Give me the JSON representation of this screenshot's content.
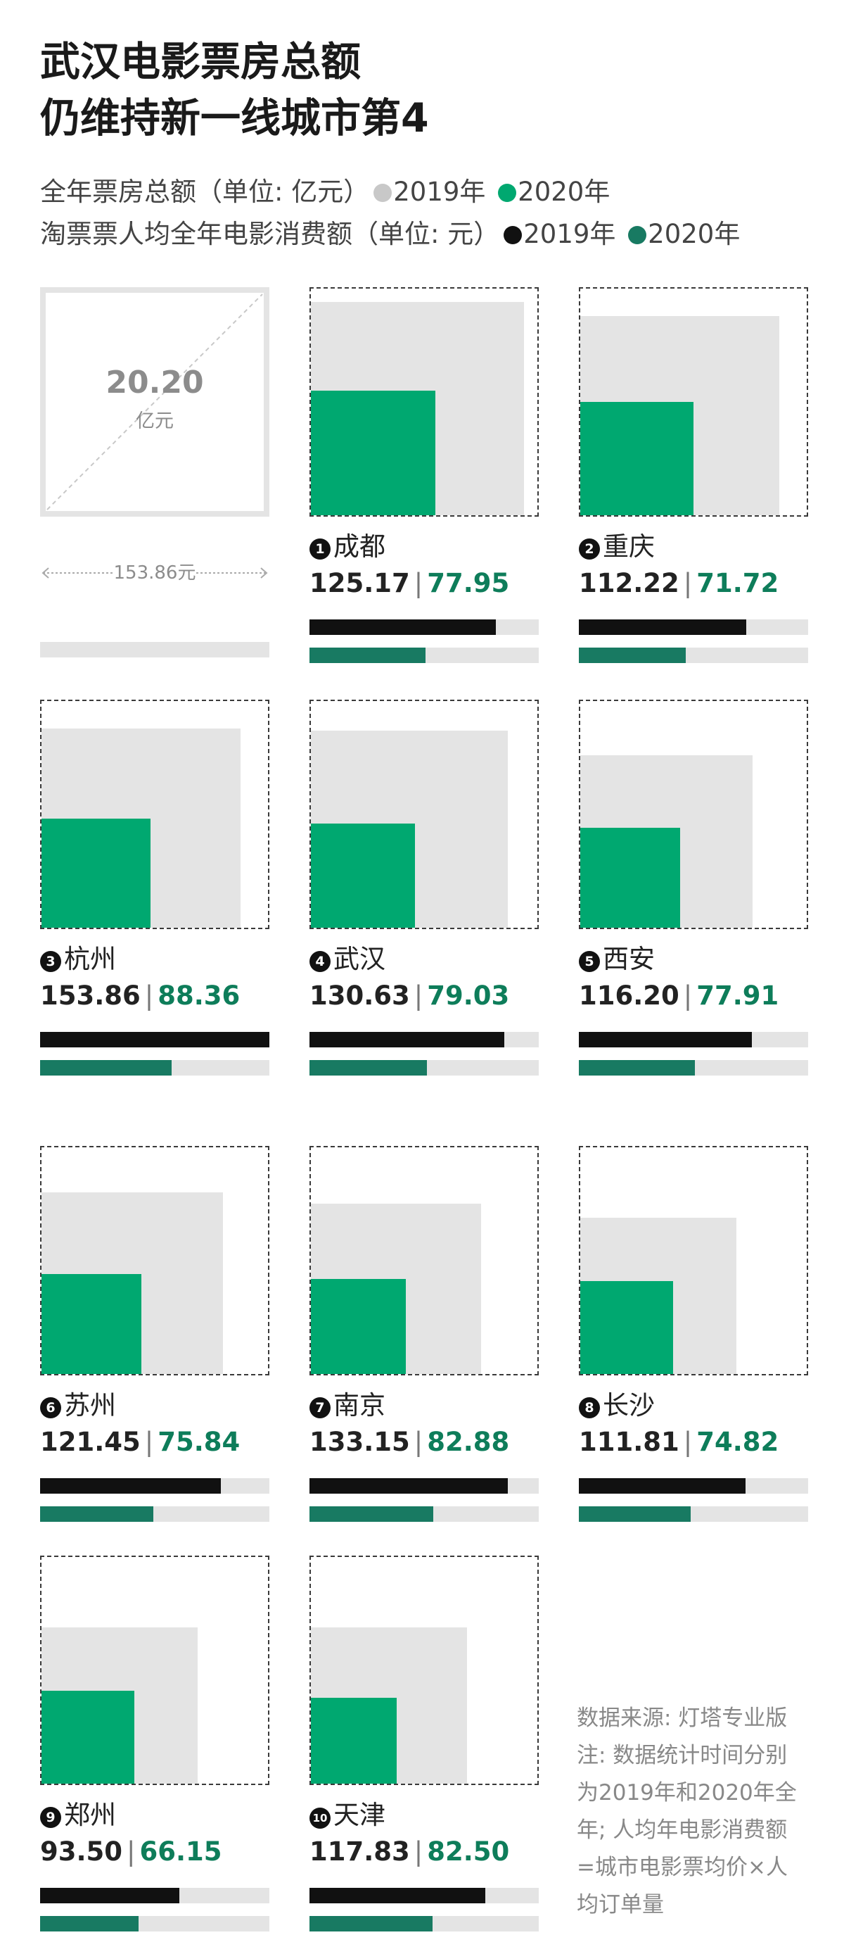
{
  "title": [
    "武汉电影票房总额",
    "仍维持新一线城市第4"
  ],
  "legend": {
    "line1": {
      "text": "全年票房总额（单位: 亿元）",
      "y2019": "2019年",
      "y2020": "2020年",
      "c2019": "#c8c8c8",
      "c2020": "#00a870"
    },
    "line2": {
      "text": "淘票票人均全年电影消费额（单位: 元）",
      "y2019": "2019年",
      "y2020": "2020年",
      "c2019": "#111111",
      "c2020": "#187a62"
    }
  },
  "reference": {
    "value": "20.20",
    "unit": "亿元",
    "label": "153.86元"
  },
  "chart_data": {
    "type": "bar",
    "title": "武汉电影票房总额 仍维持新一线城市第4",
    "series": [
      {
        "name": "全年票房总额 2019年（亿元）",
        "encoding": "square area"
      },
      {
        "name": "全年票房总额 2020年（亿元）",
        "encoding": "square area"
      },
      {
        "name": "淘票票人均全年电影消费额 2019年（元）",
        "values": [
          125.17,
          112.22,
          153.86,
          130.63,
          116.2,
          121.45,
          133.15,
          111.81,
          93.5,
          117.83
        ]
      },
      {
        "name": "淘票票人均全年电影消费额 2020年（元）",
        "values": [
          77.95,
          71.72,
          88.36,
          79.03,
          77.91,
          75.84,
          82.88,
          74.82,
          66.15,
          82.5
        ]
      }
    ],
    "cities": [
      {
        "rank": "1",
        "city": "成都",
        "p2019": "125.17",
        "p2020": "77.95",
        "box2019_frac": 0.94,
        "box2020_frac": 0.55
      },
      {
        "rank": "2",
        "city": "重庆",
        "p2019": "112.22",
        "p2020": "71.72",
        "box2019_frac": 0.88,
        "box2020_frac": 0.5
      },
      {
        "rank": "3",
        "city": "杭州",
        "p2019": "153.86",
        "p2020": "88.36",
        "box2019_frac": 0.88,
        "box2020_frac": 0.48
      },
      {
        "rank": "4",
        "city": "武汉",
        "p2019": "130.63",
        "p2020": "79.03",
        "box2019_frac": 0.87,
        "box2020_frac": 0.46
      },
      {
        "rank": "5",
        "city": "西安",
        "p2019": "116.20",
        "p2020": "77.91",
        "box2019_frac": 0.76,
        "box2020_frac": 0.44
      },
      {
        "rank": "6",
        "city": "苏州",
        "p2019": "121.45",
        "p2020": "75.84",
        "box2019_frac": 0.8,
        "box2020_frac": 0.44
      },
      {
        "rank": "7",
        "city": "南京",
        "p2019": "133.15",
        "p2020": "82.88",
        "box2019_frac": 0.75,
        "box2020_frac": 0.42
      },
      {
        "rank": "8",
        "city": "长沙",
        "p2019": "111.81",
        "p2020": "74.82",
        "box2019_frac": 0.69,
        "box2020_frac": 0.41
      },
      {
        "rank": "9",
        "city": "郑州",
        "p2019": "93.50",
        "p2020": "66.15",
        "box2019_frac": 0.69,
        "box2020_frac": 0.41
      },
      {
        "rank": "10",
        "city": "天津",
        "p2019": "117.83",
        "p2020": "82.50",
        "box2019_frac": 0.69,
        "box2020_frac": 0.38
      }
    ],
    "bar_max": 153.86,
    "reference_box": 20.2
  },
  "note": [
    "数据来源: 灯塔专业版",
    "注: 数据统计时间分别",
    "为2019年和2020年全",
    "年; 人均年电影消费额",
    "=城市电影票均价×人",
    "均订单量"
  ]
}
